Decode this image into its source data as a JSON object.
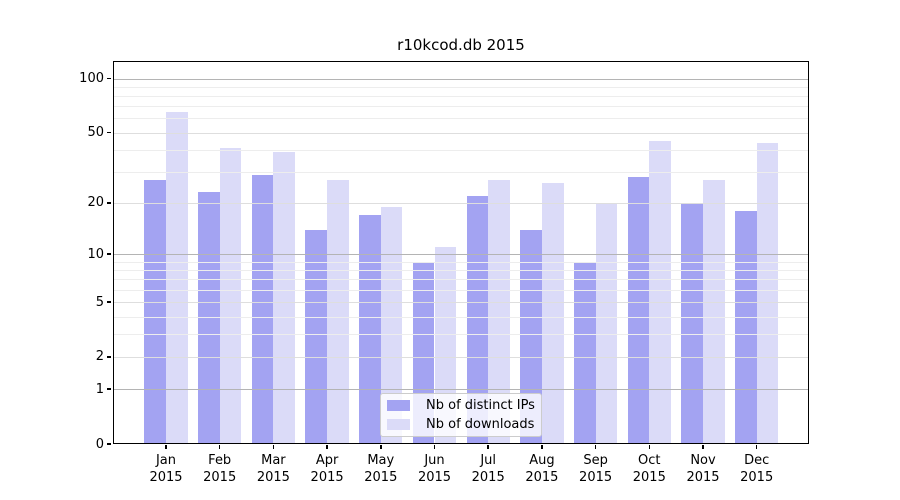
{
  "figure": {
    "title": "r10kcod.db 2015"
  },
  "chart_data": {
    "type": "bar",
    "title": "r10kcod.db 2015",
    "scale": "log1p",
    "categories": [
      "Jan",
      "Feb",
      "Mar",
      "Apr",
      "May",
      "Jun",
      "Jul",
      "Aug",
      "Sep",
      "Oct",
      "Nov",
      "Dec"
    ],
    "category_year": "2015",
    "series": [
      {
        "name": "Nb of distinct IPs",
        "color": "#a3a3f2",
        "values": [
          27,
          23,
          29,
          14,
          17,
          9,
          22,
          14,
          9,
          28,
          20,
          18
        ]
      },
      {
        "name": "Nb of downloads",
        "color": "#dbdbf8",
        "values": [
          65,
          41,
          39,
          27,
          19,
          11,
          27,
          26,
          20,
          45,
          27,
          44
        ]
      }
    ],
    "y_ticks": [
      0,
      1,
      2,
      5,
      10,
      20,
      50,
      100
    ],
    "ylim": [
      0,
      125
    ],
    "xlabel": "",
    "ylabel": "",
    "grid": true,
    "legend_position": "lower center"
  },
  "colors": {
    "grid_major": "#b4b4b4",
    "grid_mid": "#dedede",
    "grid_minor": "#ededed",
    "axis": "#000000",
    "background": "#ffffff"
  }
}
